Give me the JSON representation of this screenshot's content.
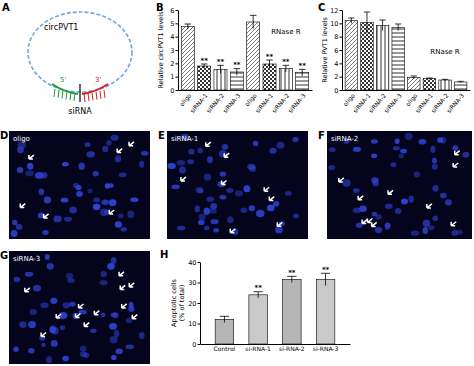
{
  "chart_data": [
    {
      "type": "bar",
      "y_label": "Relative circPVT1 levels",
      "categories": [
        "oligo",
        "siRNA-1",
        "siRNA-2",
        "siRNA-3",
        "oligo",
        "siRNA-1",
        "siRNA-2",
        "siRNA-3"
      ],
      "values": [
        4.75,
        1.8,
        1.55,
        1.35,
        5.1,
        1.95,
        1.6,
        1.3
      ],
      "errors": [
        0.2,
        0.15,
        0.3,
        0.25,
        0.5,
        0.3,
        0.25,
        0.25
      ],
      "significance": [
        null,
        "**",
        "**",
        "**",
        null,
        "**",
        "**",
        "**"
      ],
      "annotation": "RNase R",
      "color": "#ffffff",
      "ylim": [
        0,
        6
      ],
      "yticks": [
        0,
        1,
        2,
        3,
        4,
        5,
        6
      ]
    },
    {
      "type": "bar",
      "y_label": "Relative PVT1 levels",
      "categories": [
        "oligo",
        "siRNA-1",
        "siRNA-2",
        "siRNA-3",
        "oligo",
        "siRNA-1",
        "siRNA-2",
        "siRNA-3"
      ],
      "values": [
        10.4,
        10.1,
        9.7,
        9.4,
        1.9,
        1.7,
        1.5,
        1.2
      ],
      "errors": [
        0.4,
        1.6,
        0.8,
        0.5,
        0.2,
        0.1,
        0.1,
        0.1
      ],
      "annotation": "RNase R",
      "color": "#ffffff",
      "ylim": [
        0,
        12
      ],
      "yticks": [
        0,
        2,
        4,
        6,
        8,
        10,
        12
      ]
    },
    {
      "type": "bar",
      "y_label": [
        "Apoptotic cells",
        "(% of total)"
      ],
      "categories": [
        "Control",
        "si-RNA-1",
        "si-RNA-2",
        "si-RNA-3"
      ],
      "values": [
        12,
        24,
        31.5,
        31.5
      ],
      "errors": [
        1.5,
        1.5,
        1.5,
        3
      ],
      "significance": [
        null,
        "**",
        "**",
        "**"
      ],
      "colors": [
        "#b5b5b5",
        "#c9c9c9",
        "#b5b5b5",
        "#c9c9c9"
      ],
      "ylim": [
        0,
        40
      ],
      "yticks": [
        0,
        10,
        20,
        30,
        40
      ]
    }
  ],
  "figure": {
    "panel_letters": [
      "A",
      "B",
      "C",
      "D",
      "E",
      "F",
      "G",
      "H"
    ],
    "diagram": {
      "circle_label": "circPVT1",
      "five_prime": "5'",
      "three_prime": "3'",
      "sirna_label": "siRNA"
    },
    "images": [
      {
        "label": "oligo"
      },
      {
        "label": "siRNA-1"
      },
      {
        "label": "siRNA-2"
      },
      {
        "label": "siRNA-3"
      }
    ]
  }
}
